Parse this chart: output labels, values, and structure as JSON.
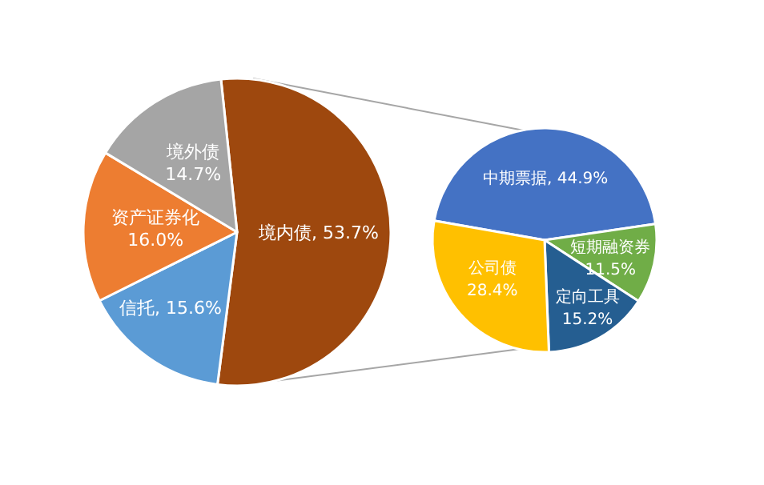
{
  "chart_data": [
    {
      "type": "pie",
      "categories": [
        "境内债",
        "信托",
        "资产证券化",
        "境外债"
      ],
      "values": [
        53.7,
        15.6,
        16.0,
        14.7
      ],
      "value_labels": [
        "53.7%",
        "15.6%",
        "16.0%",
        "14.7%"
      ],
      "colors": [
        "#9e480e",
        "#5b9bd5",
        "#ed7d31",
        "#a5a5a5"
      ]
    },
    {
      "type": "pie",
      "categories": [
        "中期票据",
        "短期融资券",
        "定向工具",
        "公司债"
      ],
      "values": [
        44.9,
        11.5,
        15.2,
        28.4
      ],
      "value_labels": [
        "44.9%",
        "11.5%",
        "15.2%",
        "28.4%"
      ],
      "colors": [
        "#4472c4",
        "#70ad47",
        "#255e91",
        "#ffc000"
      ]
    }
  ]
}
